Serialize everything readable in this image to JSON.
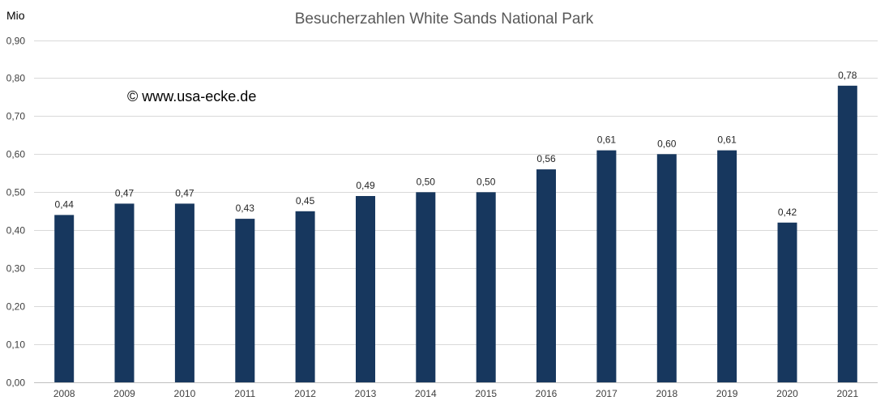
{
  "chart_data": {
    "type": "bar",
    "title": "Besucherzahlen White Sands National Park",
    "unit_label": "Mio",
    "watermark": "© www.usa-ecke.de",
    "categories": [
      "2008",
      "2009",
      "2010",
      "2011",
      "2012",
      "2013",
      "2014",
      "2015",
      "2016",
      "2017",
      "2018",
      "2019",
      "2020",
      "2021"
    ],
    "values": [
      0.44,
      0.47,
      0.47,
      0.43,
      0.45,
      0.49,
      0.5,
      0.5,
      0.56,
      0.61,
      0.6,
      0.61,
      0.42,
      0.78
    ],
    "data_labels": [
      "0,44",
      "0,47",
      "0,47",
      "0,43",
      "0,45",
      "0,49",
      "0,50",
      "0,50",
      "0,56",
      "0,61",
      "0,60",
      "0,61",
      "0,42",
      "0,78"
    ],
    "y_ticks": [
      0,
      0.1,
      0.2,
      0.3,
      0.4,
      0.5,
      0.6,
      0.7,
      0.8,
      0.9
    ],
    "y_tick_labels": [
      "0,00",
      "0,10",
      "0,20",
      "0,30",
      "0,40",
      "0,50",
      "0,60",
      "0,70",
      "0,80",
      "0,90"
    ],
    "ylim": [
      0,
      0.9
    ],
    "grid": true,
    "legend": "none",
    "bar_color": "#17375e"
  }
}
